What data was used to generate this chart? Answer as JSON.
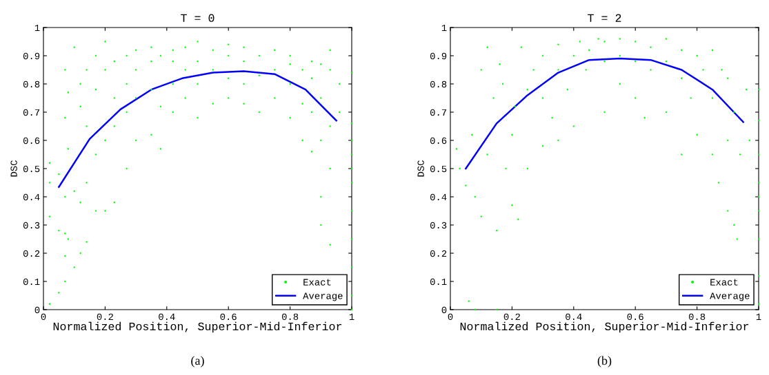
{
  "chart_data": [
    {
      "type": "scatter",
      "title": "T = 0",
      "xlabel": "Normalized Position, Superior-Mid-Inferior",
      "ylabel": "DSC",
      "annotations": [
        "(a)"
      ],
      "legend": "bottom right",
      "grid": false,
      "xlim": [
        0,
        1
      ],
      "ylim": [
        0,
        1
      ],
      "xticks": [
        0,
        0.2,
        0.4,
        0.6,
        0.8,
        1
      ],
      "yticks": [
        0,
        0.1,
        0.2,
        0.3,
        0.4,
        0.5,
        0.6,
        0.7,
        0.8,
        0.9,
        1
      ],
      "series": [
        {
          "name": "Exact",
          "marker": "circle",
          "color": "#00ff00",
          "x": [
            0.02,
            0.02,
            0.02,
            0.02,
            0.05,
            0.05,
            0.05,
            0.07,
            0.07,
            0.07,
            0.07,
            0.07,
            0.07,
            0.08,
            0.08,
            0.08,
            0.1,
            0.1,
            0.1,
            0.12,
            0.12,
            0.12,
            0.12,
            0.14,
            0.14,
            0.14,
            0.14,
            0.17,
            0.17,
            0.17,
            0.17,
            0.2,
            0.2,
            0.2,
            0.2,
            0.23,
            0.23,
            0.23,
            0.23,
            0.27,
            0.27,
            0.27,
            0.27,
            0.3,
            0.3,
            0.3,
            0.3,
            0.35,
            0.35,
            0.35,
            0.35,
            0.38,
            0.38,
            0.38,
            0.42,
            0.42,
            0.42,
            0.42,
            0.46,
            0.46,
            0.46,
            0.5,
            0.5,
            0.5,
            0.5,
            0.55,
            0.55,
            0.55,
            0.6,
            0.6,
            0.6,
            0.6,
            0.65,
            0.65,
            0.65,
            0.65,
            0.7,
            0.7,
            0.7,
            0.75,
            0.75,
            0.75,
            0.8,
            0.8,
            0.8,
            0.8,
            0.84,
            0.84,
            0.84,
            0.87,
            0.87,
            0.87,
            0.87,
            0.9,
            0.9,
            0.9,
            0.9,
            0.9,
            0.93,
            0.93,
            0.93,
            0.93,
            0.93,
            0.96,
            0.96,
            1,
            1,
            1,
            1,
            1,
            1,
            1,
            1,
            1,
            1,
            1
          ],
          "values": [
            0.02,
            0.33,
            0.45,
            0.52,
            0.06,
            0.28,
            0.48,
            0.1,
            0.19,
            0.27,
            0.4,
            0.68,
            0.85,
            0.25,
            0.57,
            0.77,
            0.93,
            0.42,
            0.15,
            0.2,
            0.38,
            0.72,
            0.8,
            0.24,
            0.45,
            0.85,
            0.65,
            0.35,
            0.55,
            0.9,
            0.78,
            0.95,
            0.6,
            0.85,
            0.35,
            0.38,
            0.65,
            0.88,
            0.75,
            0.5,
            0.8,
            0.9,
            0.7,
            0.6,
            0.75,
            0.92,
            0.85,
            0.62,
            0.78,
            0.88,
            0.93,
            0.57,
            0.72,
            0.9,
            0.7,
            0.8,
            0.88,
            0.92,
            0.75,
            0.85,
            0.93,
            0.68,
            0.8,
            0.88,
            0.95,
            0.73,
            0.85,
            0.92,
            0.75,
            0.82,
            0.9,
            0.94,
            0.73,
            0.8,
            0.88,
            0.93,
            0.7,
            0.83,
            0.9,
            0.75,
            0.85,
            0.92,
            0.68,
            0.8,
            0.87,
            0.9,
            0.6,
            0.73,
            0.85,
            0.56,
            0.7,
            0.82,
            0.88,
            0.3,
            0.4,
            0.6,
            0.75,
            0.87,
            0.23,
            0.5,
            0.65,
            0.85,
            0.92,
            0.7,
            0.8,
            0.0,
            0.05,
            0.15,
            0.25,
            0.35,
            0.45,
            0.5,
            0.55,
            0.6,
            0.66,
            0.84
          ]
        },
        {
          "name": "Average",
          "type": "line",
          "marker": "none",
          "line_style": "solid",
          "color": "#0000ff",
          "x": [
            0.05,
            0.15,
            0.25,
            0.35,
            0.45,
            0.55,
            0.65,
            0.75,
            0.85,
            0.95
          ],
          "values": [
            0.435,
            0.605,
            0.71,
            0.78,
            0.82,
            0.84,
            0.845,
            0.835,
            0.78,
            0.67
          ]
        }
      ]
    },
    {
      "type": "scatter",
      "title": "T = 2",
      "xlabel": "Normalized Position, Superior-Mid-Inferior",
      "ylabel": "DSC",
      "annotations": [
        "(b)"
      ],
      "legend": "bottom right",
      "grid": false,
      "xlim": [
        0,
        1
      ],
      "ylim": [
        0,
        1
      ],
      "xticks": [
        0,
        0.2,
        0.4,
        0.6,
        0.8,
        1
      ],
      "yticks": [
        0,
        0.1,
        0.2,
        0.3,
        0.4,
        0.5,
        0.6,
        0.7,
        0.8,
        0.9,
        1
      ],
      "series": [
        {
          "name": "Exact",
          "marker": "circle",
          "color": "#00ff00",
          "x": [
            0.02,
            0.03,
            0.05,
            0.06,
            0.07,
            0.08,
            0.08,
            0.1,
            0.1,
            0.12,
            0.12,
            0.14,
            0.15,
            0.15,
            0.16,
            0.17,
            0.18,
            0.2,
            0.2,
            0.21,
            0.22,
            0.23,
            0.25,
            0.25,
            0.27,
            0.3,
            0.3,
            0.3,
            0.33,
            0.35,
            0.35,
            0.35,
            0.38,
            0.4,
            0.4,
            0.42,
            0.44,
            0.45,
            0.48,
            0.5,
            0.5,
            0.5,
            0.55,
            0.55,
            0.55,
            0.6,
            0.6,
            0.6,
            0.63,
            0.65,
            0.65,
            0.7,
            0.7,
            0.7,
            0.75,
            0.75,
            0.75,
            0.78,
            0.8,
            0.8,
            0.82,
            0.85,
            0.85,
            0.85,
            0.87,
            0.88,
            0.9,
            0.9,
            0.9,
            0.92,
            0.92,
            0.93,
            0.94,
            0.96,
            0.97,
            1,
            1,
            1,
            1,
            1,
            1,
            1,
            1,
            1
          ],
          "values": [
            0.57,
            0.5,
            0.44,
            0.03,
            0.62,
            0.0,
            0.4,
            0.85,
            0.33,
            0.93,
            0.55,
            0.75,
            0.0,
            0.28,
            0.87,
            0.8,
            0.5,
            0.62,
            0.37,
            0.72,
            0.32,
            0.93,
            0.5,
            0.78,
            0.85,
            0.58,
            0.75,
            0.9,
            0.68,
            0.6,
            0.85,
            0.94,
            0.78,
            0.65,
            0.9,
            0.95,
            0.85,
            0.92,
            0.96,
            0.7,
            0.88,
            0.95,
            0.8,
            0.9,
            0.96,
            0.75,
            0.88,
            0.95,
            0.68,
            0.85,
            0.93,
            0.7,
            0.88,
            0.96,
            0.55,
            0.82,
            0.92,
            0.75,
            0.62,
            0.9,
            0.85,
            0.55,
            0.75,
            0.92,
            0.45,
            0.85,
            0.35,
            0.6,
            0.82,
            0.3,
            0.7,
            0.25,
            0.55,
            0.78,
            0.6,
            0.02,
            0.12,
            0.25,
            0.35,
            0.4,
            0.45,
            0.55,
            0.67,
            0.78
          ]
        },
        {
          "name": "Average",
          "type": "line",
          "marker": "none",
          "line_style": "solid",
          "color": "#0000ff",
          "x": [
            0.05,
            0.15,
            0.25,
            0.35,
            0.45,
            0.55,
            0.65,
            0.75,
            0.85,
            0.95
          ],
          "values": [
            0.5,
            0.66,
            0.76,
            0.84,
            0.885,
            0.89,
            0.885,
            0.85,
            0.78,
            0.665
          ]
        }
      ]
    }
  ]
}
